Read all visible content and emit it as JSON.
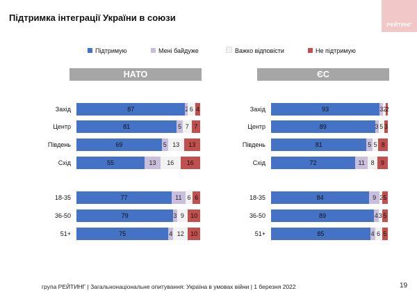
{
  "page": {
    "title": "Підтримка інтеграції України в союзи",
    "logo_text": "РЕЙТИНГ",
    "footer": "група РЕЙТИНГ | Загальнонаціональне опитування: Україна в умовах війни | 1 березня 2022",
    "page_number": "19"
  },
  "chart_data": [
    {
      "type": "bar",
      "stacked": true,
      "orientation": "horizontal",
      "title": "НАТО",
      "categories": [
        "Захід",
        "Центр",
        "Південь",
        "Схід",
        "18-35",
        "36-50",
        "51+"
      ],
      "series": [
        {
          "name": "Підтримую",
          "color": "#4472c4",
          "values": [
            87,
            81,
            69,
            55,
            77,
            79,
            75
          ]
        },
        {
          "name": "Мені байдуже",
          "color": "#c9bfdd",
          "values": [
            2,
            5,
            5,
            13,
            11,
            3,
            4
          ]
        },
        {
          "name": "Важко відповісти",
          "color": "#f2f2f2",
          "values": [
            6,
            7,
            13,
            16,
            6,
            9,
            12
          ]
        },
        {
          "name": "Не підтримую",
          "color": "#c0504d",
          "values": [
            4,
            7,
            13,
            16,
            6,
            10,
            10
          ]
        }
      ],
      "xlim": [
        0,
        100
      ],
      "legend": "top"
    },
    {
      "type": "bar",
      "stacked": true,
      "orientation": "horizontal",
      "title": "ЄС",
      "categories": [
        "Захід",
        "Центр",
        "Південь",
        "Схід",
        "18-35",
        "36-50",
        "51+"
      ],
      "series": [
        {
          "name": "Підтримую",
          "color": "#4472c4",
          "values": [
            93,
            89,
            81,
            72,
            84,
            89,
            85
          ]
        },
        {
          "name": "Мені байдуже",
          "color": "#c9bfdd",
          "values": [
            3,
            3,
            5,
            11,
            9,
            4,
            4
          ]
        },
        {
          "name": "Важко відповісти",
          "color": "#f2f2f2",
          "values": [
            2,
            5,
            5,
            8,
            2,
            3,
            6
          ]
        },
        {
          "name": "Не підтримую",
          "color": "#c0504d",
          "values": [
            2,
            3,
            8,
            9,
            5,
            5,
            5
          ]
        }
      ],
      "xlim": [
        0,
        100
      ],
      "legend": "top"
    }
  ]
}
